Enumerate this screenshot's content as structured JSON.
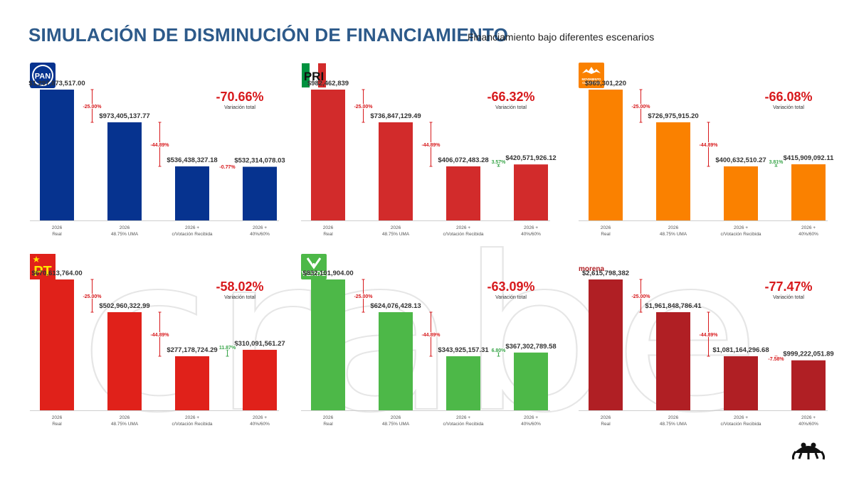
{
  "header": {
    "title": "SIMULACIÓN DE DISMINUCIÓN DE FINANCIAMIENTO",
    "subtitle": "Financiamiento bajo diferentes escenarios"
  },
  "watermark": {
    "text": "crabe"
  },
  "colors": {
    "title": "#2d5a8a",
    "negative": "#d7191c",
    "positive": "#3aa54a"
  },
  "chart_data": [
    {
      "party": "PAN",
      "type": "bar",
      "color": "#06338f",
      "logo": "pan-logo",
      "categories": [
        [
          "2026",
          "Real"
        ],
        [
          "2026",
          "48.75% UMA"
        ],
        [
          "2026 +",
          "c/Votación Recibida"
        ],
        [
          "2026 +",
          "40%/60%"
        ]
      ],
      "values": [
        1297873517.0,
        973405137.77,
        536438327.18,
        532314078.03
      ],
      "value_labels": [
        "$1,297,873,517.00",
        "$973,405,137.77",
        "$536,438,327.18",
        "$532,314,078.03"
      ],
      "changes": [
        "-25.00%",
        "-44.89%",
        "-0.77%"
      ],
      "total_change": "-70.66%",
      "total_label": "Variación total"
    },
    {
      "party": "PRI",
      "type": "bar",
      "color": "#d22b2b",
      "logo": "pri-logo",
      "categories": [
        [
          "2026",
          "Real"
        ],
        [
          "2026",
          "48.75% UMA"
        ],
        [
          "2026 +",
          "c/Votación Recibida"
        ],
        [
          "2026 +",
          "40%/60%"
        ]
      ],
      "values": [
        982462839,
        736847129.49,
        406072483.28,
        420571926.12
      ],
      "value_labels": [
        "$982,462,839",
        "$736,847,129.49",
        "$406,072,483.28",
        "$420,571,926.12"
      ],
      "changes": [
        "-25.00%",
        "-44.89%",
        "3.57%"
      ],
      "total_change": "-66.32%",
      "total_label": "Variación total"
    },
    {
      "party": "Movimiento Ciudadano",
      "type": "bar",
      "color": "#fa8100",
      "logo": "mc-logo",
      "logo_text": [
        "MOVIMIENTO",
        "CIUDADANO"
      ],
      "categories": [
        [
          "2026",
          "Real"
        ],
        [
          "2026",
          "48.75% UMA"
        ],
        [
          "2026 +",
          "c/Votación Recibida"
        ],
        [
          "2026 +",
          "40%/60%"
        ]
      ],
      "values": [
        969301220,
        726975915.2,
        400632510.27,
        415909092.11
      ],
      "value_labels": [
        "$969,301,220",
        "$726,975,915.20",
        "$400,632,510.27",
        "$415,909,092.11"
      ],
      "changes": [
        "-25.00%",
        "-44.89%",
        "3.81%"
      ],
      "total_change": "-66.08%",
      "total_label": "Variación total"
    },
    {
      "party": "PT",
      "type": "bar",
      "color": "#e0211a",
      "logo": "pt-logo",
      "categories": [
        [
          "2026",
          "Real"
        ],
        [
          "2026",
          "48.75% UMA"
        ],
        [
          "2026 +",
          "c/Votación Recibida"
        ],
        [
          "2026 +",
          "40%/60%"
        ]
      ],
      "values": [
        670613764.0,
        502960322.99,
        277178724.29,
        310091561.27
      ],
      "value_labels": [
        "$670,613,764.00",
        "$502,960,322.99",
        "$277,178,724.29",
        "$310,091,561.27"
      ],
      "changes": [
        "-25.00%",
        "-44.89%",
        "11.87%"
      ],
      "total_change": "-58.02%",
      "total_label": "Variación total"
    },
    {
      "party": "Verde",
      "type": "bar",
      "color": "#4db848",
      "logo": "verde-logo",
      "categories": [
        [
          "2026",
          "Real"
        ],
        [
          "2026",
          "48.75% UMA"
        ],
        [
          "2026 +",
          "c/Votación Recibida"
        ],
        [
          "2026 +",
          "40%/60%"
        ]
      ],
      "values": [
        832101904.0,
        624076428.13,
        343925157.31,
        367302789.58
      ],
      "value_labels": [
        "$832,101,904.00",
        "$624,076,428.13",
        "$343,925,157.31",
        "$367,302,789.58"
      ],
      "changes": [
        "-25.00%",
        "-44.89%",
        "6.80%"
      ],
      "total_change": "-63.09%",
      "total_label": "Variación total"
    },
    {
      "party": "morena",
      "type": "bar",
      "color": "#b01f24",
      "logo": "morena-logo",
      "categories": [
        [
          "2026",
          "Real"
        ],
        [
          "2026",
          "48.75% UMA"
        ],
        [
          "2026 +",
          "c/Votación Recibida"
        ],
        [
          "2026 +",
          "40%/60%"
        ]
      ],
      "values": [
        2615798382,
        1961848786.41,
        1081164296.68,
        999222051.89
      ],
      "value_labels": [
        "$2,615,798,382",
        "$1,961,848,786.41",
        "$1,081,164,296.68",
        "$999,222,051.89"
      ],
      "changes": [
        "-25.00%",
        "-44.89%",
        "-7.58%"
      ],
      "total_change": "-77.47%",
      "total_label": "Variación total"
    }
  ]
}
